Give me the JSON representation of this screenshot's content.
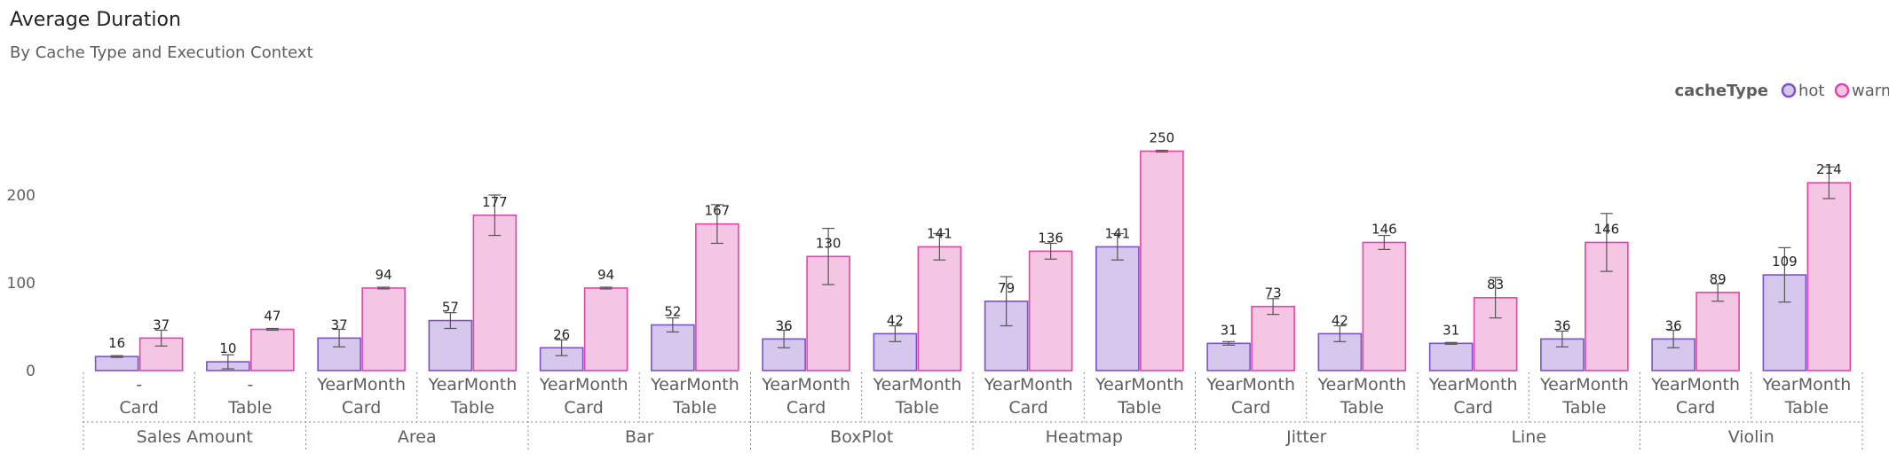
{
  "title": "Average Duration",
  "subtitle": "By Cache Type and Execution Context",
  "chart_data": {
    "type": "bar",
    "title": "Average Duration",
    "subtitle": "By Cache Type and Execution Context",
    "xlabel": "",
    "ylabel": "",
    "ylim": [
      0,
      260
    ],
    "y_ticks": [
      0,
      100,
      200
    ],
    "grid": false,
    "legend": {
      "title": "cacheType",
      "placement": "top-right"
    },
    "colors": {
      "hot_fill": "#d5c8ec",
      "hot_stroke": "#7d52c9",
      "warm_fill": "#f5c6e4",
      "warm_stroke": "#e046a9",
      "error_bar": "#555555"
    },
    "groups": [
      {
        "name": "Sales Amount",
        "sub": [
          {
            "line1": "-",
            "line2": "Card"
          },
          {
            "line1": "-",
            "line2": "Table"
          }
        ]
      },
      {
        "name": "Area",
        "sub": [
          {
            "line1": "YearMonth",
            "line2": "Card"
          },
          {
            "line1": "YearMonth",
            "line2": "Table"
          }
        ]
      },
      {
        "name": "Bar",
        "sub": [
          {
            "line1": "YearMonth",
            "line2": "Card"
          },
          {
            "line1": "YearMonth",
            "line2": "Table"
          }
        ]
      },
      {
        "name": "BoxPlot",
        "sub": [
          {
            "line1": "YearMonth",
            "line2": "Card"
          },
          {
            "line1": "YearMonth",
            "line2": "Table"
          }
        ]
      },
      {
        "name": "Heatmap",
        "sub": [
          {
            "line1": "YearMonth",
            "line2": "Card"
          },
          {
            "line1": "YearMonth",
            "line2": "Table"
          }
        ]
      },
      {
        "name": "Jitter",
        "sub": [
          {
            "line1": "YearMonth",
            "line2": "Card"
          },
          {
            "line1": "YearMonth",
            "line2": "Table"
          }
        ]
      },
      {
        "name": "Line",
        "sub": [
          {
            "line1": "YearMonth",
            "line2": "Card"
          },
          {
            "line1": "YearMonth",
            "line2": "Table"
          }
        ]
      },
      {
        "name": "Violin",
        "sub": [
          {
            "line1": "YearMonth",
            "line2": "Card"
          },
          {
            "line1": "YearMonth",
            "line2": "Table"
          }
        ]
      }
    ],
    "series": [
      {
        "name": "hot",
        "values": [
          16,
          10,
          37,
          57,
          26,
          52,
          36,
          42,
          79,
          141,
          31,
          42,
          31,
          36,
          36,
          109
        ],
        "error_low": [
          15,
          2,
          27,
          48,
          17,
          44,
          26,
          33,
          51,
          126,
          29,
          33,
          30,
          27,
          26,
          78
        ],
        "error_high": [
          17,
          18,
          47,
          66,
          35,
          60,
          46,
          51,
          107,
          156,
          33,
          51,
          32,
          45,
          46,
          140
        ]
      },
      {
        "name": "warm",
        "values": [
          37,
          47,
          94,
          177,
          94,
          167,
          130,
          141,
          136,
          250,
          73,
          146,
          83,
          146,
          89,
          214
        ],
        "error_low": [
          28,
          46,
          93,
          154,
          93,
          145,
          98,
          126,
          127,
          249,
          64,
          138,
          60,
          113,
          79,
          196
        ],
        "error_high": [
          46,
          48,
          95,
          200,
          95,
          189,
          162,
          156,
          145,
          251,
          82,
          154,
          106,
          179,
          99,
          232
        ]
      }
    ]
  }
}
